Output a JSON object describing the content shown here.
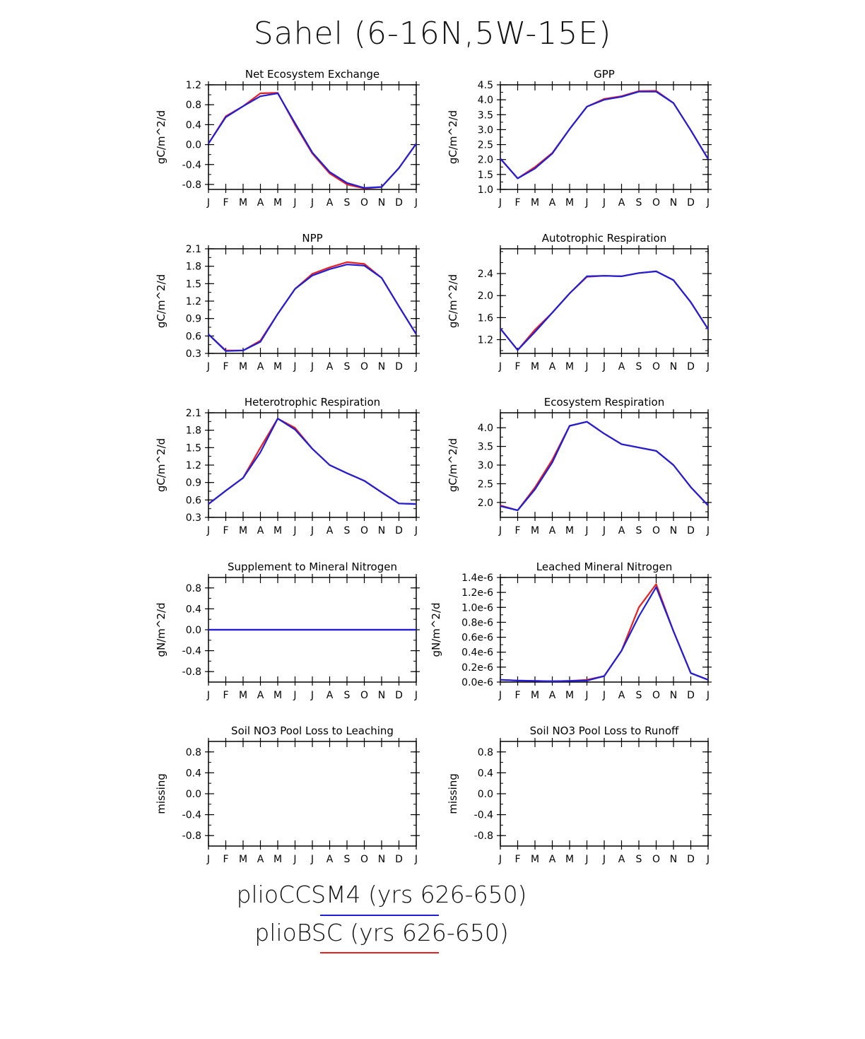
{
  "title": "Sahel (6-16N,5W-15E)",
  "colors": {
    "plioCCSM4": "#1f1fd8",
    "plioBSC": "#e81f1f"
  },
  "legend": [
    {
      "label": "plioCCSM4 (yrs 626-650)",
      "color": "#1f1fd8"
    },
    {
      "label": "plioBSC (yrs 626-650)",
      "color": "#e81f1f"
    }
  ],
  "chart_data": [
    {
      "type": "line",
      "title": "Net Ecosystem Exchange",
      "ylabel": "gC/m^2/d",
      "categories": [
        "J",
        "F",
        "M",
        "A",
        "M",
        "J",
        "J",
        "A",
        "S",
        "O",
        "N",
        "D",
        "J"
      ],
      "ylim": [
        -0.9,
        1.2
      ],
      "yticks": [
        -0.8,
        -0.4,
        0.0,
        0.4,
        0.8,
        1.2
      ],
      "ytick_labels": [
        "-0.8",
        "-0.4",
        "0.0",
        "0.4",
        "0.8",
        "1.2"
      ],
      "series": [
        {
          "name": "plioBSC",
          "values": [
            0.02,
            0.57,
            0.77,
            1.03,
            1.04,
            0.4,
            -0.18,
            -0.58,
            -0.8,
            -0.88,
            -0.85,
            -0.47,
            0.02
          ]
        },
        {
          "name": "plioCCSM4",
          "values": [
            0.02,
            0.55,
            0.77,
            0.97,
            1.03,
            0.43,
            -0.16,
            -0.55,
            -0.77,
            -0.87,
            -0.85,
            -0.47,
            0.02
          ]
        }
      ]
    },
    {
      "type": "line",
      "title": "GPP",
      "ylabel": "gC/m^2/d",
      "categories": [
        "J",
        "F",
        "M",
        "A",
        "M",
        "J",
        "J",
        "A",
        "S",
        "O",
        "N",
        "D",
        "J"
      ],
      "ylim": [
        1.0,
        4.5
      ],
      "yticks": [
        1.0,
        1.5,
        2.0,
        2.5,
        3.0,
        3.5,
        4.0,
        4.5
      ],
      "ytick_labels": [
        "1.0",
        "1.5",
        "2.0",
        "2.5",
        "3.0",
        "3.5",
        "4.0",
        "4.5"
      ],
      "series": [
        {
          "name": "plioBSC",
          "values": [
            2.03,
            1.37,
            1.75,
            2.22,
            3.02,
            3.77,
            4.03,
            4.12,
            4.29,
            4.3,
            3.89,
            2.98,
            2.02
          ]
        },
        {
          "name": "plioCCSM4",
          "values": [
            2.03,
            1.37,
            1.7,
            2.2,
            3.02,
            3.77,
            4.0,
            4.1,
            4.27,
            4.27,
            3.89,
            2.98,
            2.02
          ]
        }
      ]
    },
    {
      "type": "line",
      "title": "NPP",
      "ylabel": "gC/m^2/d",
      "categories": [
        "J",
        "F",
        "M",
        "A",
        "M",
        "J",
        "J",
        "A",
        "S",
        "O",
        "N",
        "D",
        "J"
      ],
      "ylim": [
        0.3,
        2.1
      ],
      "yticks": [
        0.3,
        0.6,
        0.9,
        1.2,
        1.5,
        1.8,
        2.1
      ],
      "ytick_labels": [
        "0.3",
        "0.6",
        "0.9",
        "1.2",
        "1.5",
        "1.8",
        "2.1"
      ],
      "series": [
        {
          "name": "plioBSC",
          "values": [
            0.63,
            0.35,
            0.35,
            0.52,
            0.98,
            1.41,
            1.67,
            1.78,
            1.87,
            1.84,
            1.6,
            1.11,
            0.63
          ]
        },
        {
          "name": "plioCCSM4",
          "values": [
            0.63,
            0.34,
            0.35,
            0.5,
            0.98,
            1.41,
            1.64,
            1.75,
            1.83,
            1.81,
            1.6,
            1.11,
            0.63
          ]
        }
      ]
    },
    {
      "type": "line",
      "title": "Autotrophic Respiration",
      "ylabel": "gC/m^2/d",
      "categories": [
        "J",
        "F",
        "M",
        "A",
        "M",
        "J",
        "J",
        "A",
        "S",
        "O",
        "N",
        "D",
        "J"
      ],
      "ylim": [
        0.95,
        2.85
      ],
      "yticks": [
        1.2,
        1.6,
        2.0,
        2.4
      ],
      "ytick_labels": [
        "1.2",
        "1.6",
        "2.0",
        "2.4"
      ],
      "series": [
        {
          "name": "plioBSC",
          "values": [
            1.4,
            1.01,
            1.38,
            1.69,
            2.04,
            2.34,
            2.36,
            2.35,
            2.41,
            2.44,
            2.28,
            1.88,
            1.39
          ]
        },
        {
          "name": "plioCCSM4",
          "values": [
            1.4,
            1.01,
            1.34,
            1.69,
            2.04,
            2.35,
            2.36,
            2.35,
            2.41,
            2.44,
            2.28,
            1.88,
            1.39
          ]
        }
      ]
    },
    {
      "type": "line",
      "title": "Heterotrophic Respiration",
      "ylabel": "gC/m^2/d",
      "categories": [
        "J",
        "F",
        "M",
        "A",
        "M",
        "J",
        "J",
        "A",
        "S",
        "O",
        "N",
        "D",
        "J"
      ],
      "ylim": [
        0.3,
        2.1
      ],
      "yticks": [
        0.3,
        0.6,
        0.9,
        1.2,
        1.5,
        1.8,
        2.1
      ],
      "ytick_labels": [
        "0.3",
        "0.6",
        "0.9",
        "1.2",
        "1.5",
        "1.8",
        "2.1"
      ],
      "series": [
        {
          "name": "plioBSC",
          "values": [
            0.53,
            0.76,
            0.98,
            1.5,
            2.0,
            1.84,
            1.48,
            1.2,
            1.06,
            0.93,
            0.73,
            0.54,
            0.53
          ]
        },
        {
          "name": "plioCCSM4",
          "values": [
            0.53,
            0.76,
            0.98,
            1.42,
            2.0,
            1.81,
            1.48,
            1.2,
            1.06,
            0.93,
            0.73,
            0.54,
            0.53
          ]
        }
      ]
    },
    {
      "type": "line",
      "title": "Ecosystem Respiration",
      "ylabel": "gC/m^2/d",
      "categories": [
        "J",
        "F",
        "M",
        "A",
        "M",
        "J",
        "J",
        "A",
        "S",
        "O",
        "N",
        "D",
        "J"
      ],
      "ylim": [
        1.6,
        4.4
      ],
      "yticks": [
        2.0,
        2.5,
        3.0,
        3.5,
        4.0
      ],
      "ytick_labels": [
        "2.0",
        "2.5",
        "3.0",
        "3.5",
        "4.0"
      ],
      "series": [
        {
          "name": "plioBSC",
          "values": [
            1.92,
            1.79,
            2.4,
            3.14,
            4.05,
            4.16,
            3.84,
            3.56,
            3.47,
            3.38,
            3.0,
            2.41,
            1.92
          ]
        },
        {
          "name": "plioCCSM4",
          "values": [
            1.9,
            1.79,
            2.35,
            3.07,
            4.05,
            4.16,
            3.84,
            3.56,
            3.47,
            3.38,
            3.0,
            2.41,
            1.92
          ]
        }
      ]
    },
    {
      "type": "line",
      "title": "Supplement to Mineral Nitrogen",
      "ylabel": "gN/m^2/d",
      "categories": [
        "J",
        "F",
        "M",
        "A",
        "M",
        "J",
        "J",
        "A",
        "S",
        "O",
        "N",
        "D",
        "J"
      ],
      "ylim": [
        -1.0,
        1.0
      ],
      "yticks": [
        -0.8,
        -0.4,
        0.0,
        0.4,
        0.8
      ],
      "ytick_labels": [
        "-0.8",
        "-0.4",
        "0.0",
        "0.4",
        "0.8"
      ],
      "series": [
        {
          "name": "plioBSC",
          "values": [
            0,
            0,
            0,
            0,
            0,
            0,
            0,
            0,
            0,
            0,
            0,
            0,
            0
          ]
        },
        {
          "name": "plioCCSM4",
          "values": [
            0,
            0,
            0,
            0,
            0,
            0,
            0,
            0,
            0,
            0,
            0,
            0,
            0
          ]
        }
      ]
    },
    {
      "type": "line",
      "title": "Leached Mineral Nitrogen",
      "ylabel": "gN/m^2/d",
      "categories": [
        "J",
        "F",
        "M",
        "A",
        "M",
        "J",
        "J",
        "A",
        "S",
        "O",
        "N",
        "D",
        "J"
      ],
      "ylim": [
        0,
        1.4e-06
      ],
      "yticks": [
        0,
        2e-07,
        4e-07,
        6e-07,
        8e-07,
        1e-06,
        1.2e-06,
        1.4e-06
      ],
      "ytick_labels": [
        "0.0e-6",
        "0.2e-6",
        "0.4e-6",
        "0.6e-6",
        "0.8e-6",
        "1.0e-6",
        "1.2e-6",
        "1.4e-6"
      ],
      "series": [
        {
          "name": "plioBSC",
          "values": [
            3e-08,
            2e-08,
            1.5e-08,
            1e-08,
            1.5e-08,
            3e-08,
            8e-08,
            4.2e-07,
            1e-06,
            1.31e-06,
            6.8e-07,
            1.2e-07,
            3e-08
          ]
        },
        {
          "name": "plioCCSM4",
          "values": [
            3e-08,
            2e-08,
            1.5e-08,
            1e-08,
            1.5e-08,
            2e-08,
            8e-08,
            4.2e-07,
            8.8e-07,
            1.27e-06,
            6.8e-07,
            1.2e-07,
            3e-08
          ]
        }
      ]
    },
    {
      "type": "line",
      "title": "Soil NO3 Pool Loss to Leaching",
      "ylabel": "missing",
      "categories": [
        "J",
        "F",
        "M",
        "A",
        "M",
        "J",
        "J",
        "A",
        "S",
        "O",
        "N",
        "D",
        "J"
      ],
      "ylim": [
        -1.0,
        1.0
      ],
      "yticks": [
        -0.8,
        -0.4,
        0.0,
        0.4,
        0.8
      ],
      "ytick_labels": [
        "-0.8",
        "-0.4",
        "0.0",
        "0.4",
        "0.8"
      ],
      "series": []
    },
    {
      "type": "line",
      "title": "Soil NO3 Pool Loss to Runoff",
      "ylabel": "missing",
      "categories": [
        "J",
        "F",
        "M",
        "A",
        "M",
        "J",
        "J",
        "A",
        "S",
        "O",
        "N",
        "D",
        "J"
      ],
      "ylim": [
        -1.0,
        1.0
      ],
      "yticks": [
        -0.8,
        -0.4,
        0.0,
        0.4,
        0.8
      ],
      "ytick_labels": [
        "-0.8",
        "-0.4",
        "0.0",
        "0.4",
        "0.8"
      ],
      "series": []
    }
  ]
}
